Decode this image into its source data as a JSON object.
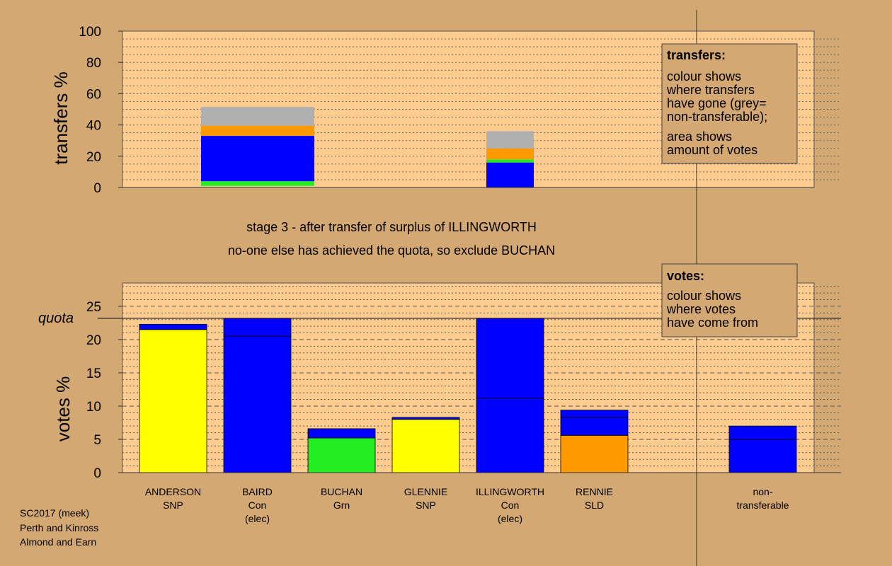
{
  "colors": {
    "background": "#d4a872",
    "plot_bg": "#ffcc8f",
    "SNP": "#ffff00",
    "Con": "#0000ff",
    "Grn": "#22ee22",
    "SLD": "#ff9900",
    "nontransferable": "#b0b0b0"
  },
  "chart_data": [
    {
      "type": "bar",
      "stacked": true,
      "ylabel": "transfers %",
      "ylim": [
        0,
        100
      ],
      "yticks": [
        0,
        20,
        40,
        60,
        80,
        100
      ],
      "grid": true,
      "bars": [
        {
          "name": "surplus",
          "segments": [
            {
              "party": "Grn",
              "color": "#22ee22",
              "from": 1,
              "to": 4
            },
            {
              "party": "Con",
              "color": "#0000ff",
              "from": 4,
              "to": 33
            },
            {
              "party": "SLD",
              "color": "#ff9900",
              "from": 33,
              "to": 39.5
            },
            {
              "party": "nontransferable",
              "color": "#b0b0b0",
              "from": 39.5,
              "to": 51.5
            }
          ]
        },
        {
          "name": "exclusion",
          "segments": [
            {
              "party": "Con",
              "color": "#0000ff",
              "from": 0,
              "to": 16
            },
            {
              "party": "Grn",
              "color": "#22ee22",
              "from": 16,
              "to": 18
            },
            {
              "party": "SLD",
              "color": "#ff9900",
              "from": 18,
              "to": 25
            },
            {
              "party": "nontransferable",
              "color": "#b0b0b0",
              "from": 25,
              "to": 36
            }
          ]
        }
      ],
      "legend": {
        "title": "transfers:",
        "lines1": [
          "colour shows",
          "where transfers",
          "have gone (grey=",
          "non-transferable);"
        ],
        "lines2": [
          "area shows",
          "amount of votes"
        ]
      }
    },
    {
      "type": "bar",
      "stacked": true,
      "ylabel": "votes %",
      "ylim": [
        0,
        28.5
      ],
      "yticks": [
        0,
        5,
        10,
        15,
        20,
        25
      ],
      "quota": 23.2,
      "quota_label": "quota",
      "grid": true,
      "categories": [
        {
          "lines": [
            "ANDERSON",
            "SNP"
          ],
          "segments": [
            {
              "party": "SNP",
              "color": "#ffff00",
              "value": 21.5
            },
            {
              "party": "Con",
              "color": "#0000ff",
              "value": 0.8
            }
          ]
        },
        {
          "lines": [
            "BAIRD",
            "Con",
            "(elec)"
          ],
          "segments": [
            {
              "party": "Con",
              "color": "#0000ff",
              "value": 20.5
            },
            {
              "party": "Con",
              "color": "#0000ff",
              "value": 2.7
            }
          ]
        },
        {
          "lines": [
            "BUCHAN",
            "Grn"
          ],
          "segments": [
            {
              "party": "Grn",
              "color": "#22ee22",
              "value": 5.2
            },
            {
              "party": "Con",
              "color": "#0000ff",
              "value": 1.4
            }
          ]
        },
        {
          "lines": [
            "GLENNIE",
            "SNP"
          ],
          "segments": [
            {
              "party": "SNP",
              "color": "#ffff00",
              "value": 8.0
            },
            {
              "party": "Con",
              "color": "#0000ff",
              "value": 0.3
            }
          ]
        },
        {
          "lines": [
            "ILLINGWORTH",
            "Con",
            "(elec)"
          ],
          "segments": [
            {
              "party": "Con",
              "color": "#0000ff",
              "value": 11.2
            },
            {
              "party": "Con",
              "color": "#0000ff",
              "value": 12.0
            }
          ]
        },
        {
          "lines": [
            "RENNIE",
            "SLD"
          ],
          "segments": [
            {
              "party": "SLD",
              "color": "#ff9900",
              "value": 5.6
            },
            {
              "party": "Con",
              "color": "#0000ff",
              "value": 2.7
            },
            {
              "party": "Con",
              "color": "#0000ff",
              "value": 1.1
            }
          ]
        },
        {
          "lines": [
            "",
            ""
          ],
          "segments": []
        },
        {
          "lines": [
            "non-",
            "transferable"
          ],
          "segments": [
            {
              "party": "Con",
              "color": "#0000ff",
              "value": 5.0
            },
            {
              "party": "Con",
              "color": "#0000ff",
              "value": 2.0
            }
          ]
        }
      ],
      "legend": {
        "title": "votes:",
        "lines": [
          "colour shows",
          "where votes",
          "have come from"
        ]
      }
    }
  ],
  "stage_text": {
    "line1": "stage 3 - after transfer of surplus of ILLINGWORTH",
    "line2": "no-one else has achieved the quota, so exclude BUCHAN"
  },
  "footer": {
    "line1": "SC2017 (meek)",
    "line2": "Perth and Kinross",
    "line3": "Almond and Earn"
  }
}
